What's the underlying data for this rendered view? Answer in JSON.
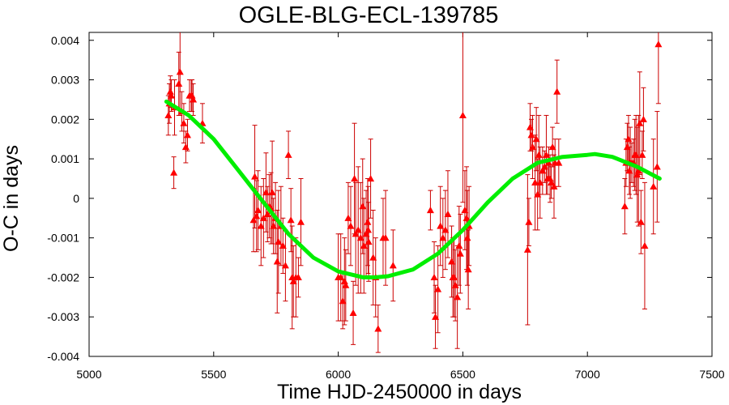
{
  "chart_data": {
    "type": "scatter",
    "title": "OGLE-BLG-ECL-139785",
    "xlabel": "Time HJD-2450000 in days",
    "ylabel": "O-C in days",
    "xlim": [
      5000,
      7500
    ],
    "ylim": [
      -0.004,
      0.0042
    ],
    "x_ticks": [
      5000,
      5500,
      6000,
      6500,
      7000,
      7500
    ],
    "x_tick_labels": [
      "5000",
      "5500",
      "6000",
      "6500",
      "7000",
      "7500"
    ],
    "y_ticks": [
      -0.004,
      -0.003,
      -0.002,
      -0.001,
      0,
      0.001,
      0.002,
      0.003,
      0.004
    ],
    "y_tick_labels": [
      "-0.004",
      "-0.003",
      "-0.002",
      "-0.001",
      "0",
      "0.001",
      "0.002",
      "0.003",
      "0.004"
    ],
    "grid": false,
    "legend": "none",
    "colors": {
      "points": "#ff0000",
      "errorbars": "#cc0000",
      "fit": "#00ee00",
      "frame": "#000000"
    },
    "series": [
      {
        "kind": "points_with_errorbars",
        "marker": "triangle",
        "x": [
          5318,
          5322,
          5326,
          5330,
          5340,
          5343,
          5360,
          5365,
          5372,
          5380,
          5388,
          5395,
          5403,
          5410,
          5413,
          5418,
          5455,
          5660,
          5665,
          5672,
          5678,
          5690,
          5700,
          5710,
          5716,
          5723,
          5730,
          5735,
          5740,
          5748,
          5755,
          5760,
          5770,
          5778,
          5788,
          5800,
          5810,
          5815,
          5820,
          5830,
          5840,
          5850,
          6000,
          6010,
          6018,
          6025,
          6030,
          6040,
          6050,
          6060,
          6065,
          6070,
          6080,
          6090,
          6098,
          6103,
          6112,
          6118,
          6120,
          6122,
          6130,
          6140,
          6150,
          6160,
          6180,
          6190,
          6220,
          6370,
          6385,
          6390,
          6400,
          6410,
          6420,
          6430,
          6440,
          6455,
          6460,
          6465,
          6470,
          6478,
          6485,
          6490,
          6500,
          6508,
          6515,
          6518,
          6522,
          6525,
          6760,
          6765,
          6770,
          6775,
          6780,
          6790,
          6795,
          6800,
          6805,
          6810,
          6820,
          6828,
          6835,
          6840,
          6845,
          6850,
          6855,
          6860,
          6866,
          6870,
          6878,
          6885,
          7150,
          7155,
          7160,
          7165,
          7168,
          7172,
          7178,
          7185,
          7190,
          7195,
          7200,
          7205,
          7210,
          7215,
          7220,
          7225,
          7230,
          7265,
          7280,
          7285
        ],
        "y": [
          0.0021,
          0.0024,
          0.0027,
          0.0026,
          0.00065,
          0.0023,
          0.0029,
          0.0032,
          0.0022,
          0.0019,
          0.0013,
          0.0016,
          0.0026,
          0.0026,
          0.0026,
          0.0025,
          0.0019,
          -0.00055,
          0.00055,
          -0.00045,
          -0.0003,
          -0.0007,
          -0.0005,
          0.00015,
          -0.0004,
          -0.0002,
          -0.00025,
          0.00015,
          -0.0007,
          -0.0005,
          -0.0016,
          -0.0011,
          -0.0007,
          -0.0012,
          -0.0017,
          0.0011,
          -0.00055,
          -0.002,
          -0.0021,
          -0.002,
          -0.002,
          -0.0006,
          -0.002,
          -0.002,
          -0.0026,
          -0.0021,
          -0.0022,
          -0.0005,
          -0.0007,
          -0.0029,
          0.0005,
          -0.0009,
          -0.0008,
          -0.001,
          -0.0002,
          -0.0012,
          -0.0009,
          -0.0006,
          -0.0008,
          -0.0011,
          0.0005,
          -0.0015,
          -0.002,
          -0.0033,
          -0.001,
          -0.001,
          -0.0017,
          -0.0003,
          -0.002,
          -0.003,
          -0.0023,
          -0.0007,
          -0.001,
          -0.0008,
          -0.0004,
          -0.0016,
          -0.002,
          -0.002,
          -0.0022,
          -0.0025,
          -0.0012,
          -0.0014,
          0.0021,
          -0.0003,
          -0.0005,
          -0.001,
          -0.0018,
          -0.0007,
          -0.0013,
          -0.0006,
          0.0018,
          0.0016,
          0.0013,
          0.0004,
          0.0015,
          0.0001,
          0.0011,
          0.0004,
          0.0007,
          0.0008,
          0.0011,
          0.0005,
          0.0009,
          0.0005,
          0.0004,
          0.0013,
          0.0003,
          0.0009,
          0.0027,
          0.0009,
          -0.0002,
          0.0009,
          0.0013,
          0.0015,
          0.0007,
          0.0009,
          0.0009,
          0.0009,
          0.0011,
          0.0011,
          0.0006,
          0.0007,
          0.0019,
          -0.0006,
          0.0011,
          0.002,
          -0.0012,
          0.0003,
          0.0008,
          0.0039
        ],
        "err": [
          0.0005,
          0.0005,
          0.0004,
          0.0004,
          0.0004,
          0.0007,
          0.0008,
          0.0011,
          0.0005,
          0.0005,
          0.0004,
          0.0004,
          0.0004,
          0.0004,
          0.0004,
          0.0004,
          0.0005,
          0.0008,
          0.0013,
          0.0009,
          0.001,
          0.001,
          0.001,
          0.001,
          0.0007,
          0.0008,
          0.0009,
          0.0013,
          0.0007,
          0.0009,
          0.0013,
          0.0013,
          0.001,
          0.0007,
          0.0009,
          0.0006,
          0.0008,
          0.0013,
          0.0009,
          0.001,
          0.0005,
          0.0011,
          0.0011,
          0.0011,
          0.0007,
          0.0011,
          0.0009,
          0.0009,
          0.001,
          0.0008,
          0.0014,
          0.0013,
          0.0016,
          0.0014,
          0.0012,
          0.0012,
          0.0011,
          0.0011,
          0.0011,
          0.001,
          0.001,
          0.0012,
          0.001,
          0.0006,
          0.001,
          0.0012,
          0.0009,
          0.0005,
          0.0009,
          0.0008,
          0.0011,
          0.001,
          0.001,
          0.001,
          0.0011,
          0.0009,
          0.001,
          0.001,
          0.0009,
          0.0013,
          0.001,
          0.001,
          0.0022,
          0.001,
          0.0013,
          0.0012,
          0.001,
          0.001,
          0.0019,
          0.0006,
          0.0006,
          0.0004,
          0.0008,
          0.0012,
          0.0008,
          0.0009,
          0.001,
          0.0009,
          0.0006,
          0.0004,
          0.001,
          0.0004,
          0.0004,
          0.0006,
          0.0004,
          0.0005,
          0.0008,
          0.0006,
          0.0008,
          0.0006,
          0.0007,
          0.0006,
          0.0006,
          0.0006,
          0.0006,
          0.0009,
          0.0005,
          0.0006,
          0.0009,
          0.001,
          0.0012,
          0.0014,
          0.0013,
          0.0008,
          0.0006,
          0.0008,
          0.0016,
          0.0012,
          0.0014,
          0.0015
        ]
      },
      {
        "kind": "fit_line",
        "x": [
          5310,
          5400,
          5500,
          5600,
          5700,
          5800,
          5900,
          6000,
          6100,
          6150,
          6200,
          6300,
          6400,
          6500,
          6600,
          6700,
          6800,
          6900,
          7000,
          7030,
          7100,
          7200,
          7290
        ],
        "y": [
          0.00245,
          0.0021,
          0.0015,
          0.0007,
          -0.0001,
          -0.0009,
          -0.0015,
          -0.00185,
          -0.002,
          -0.002,
          -0.00197,
          -0.0018,
          -0.0014,
          -0.0008,
          -0.0001,
          0.0005,
          0.0009,
          0.00105,
          0.0011,
          0.00112,
          0.00105,
          0.0008,
          0.0005
        ]
      }
    ]
  }
}
